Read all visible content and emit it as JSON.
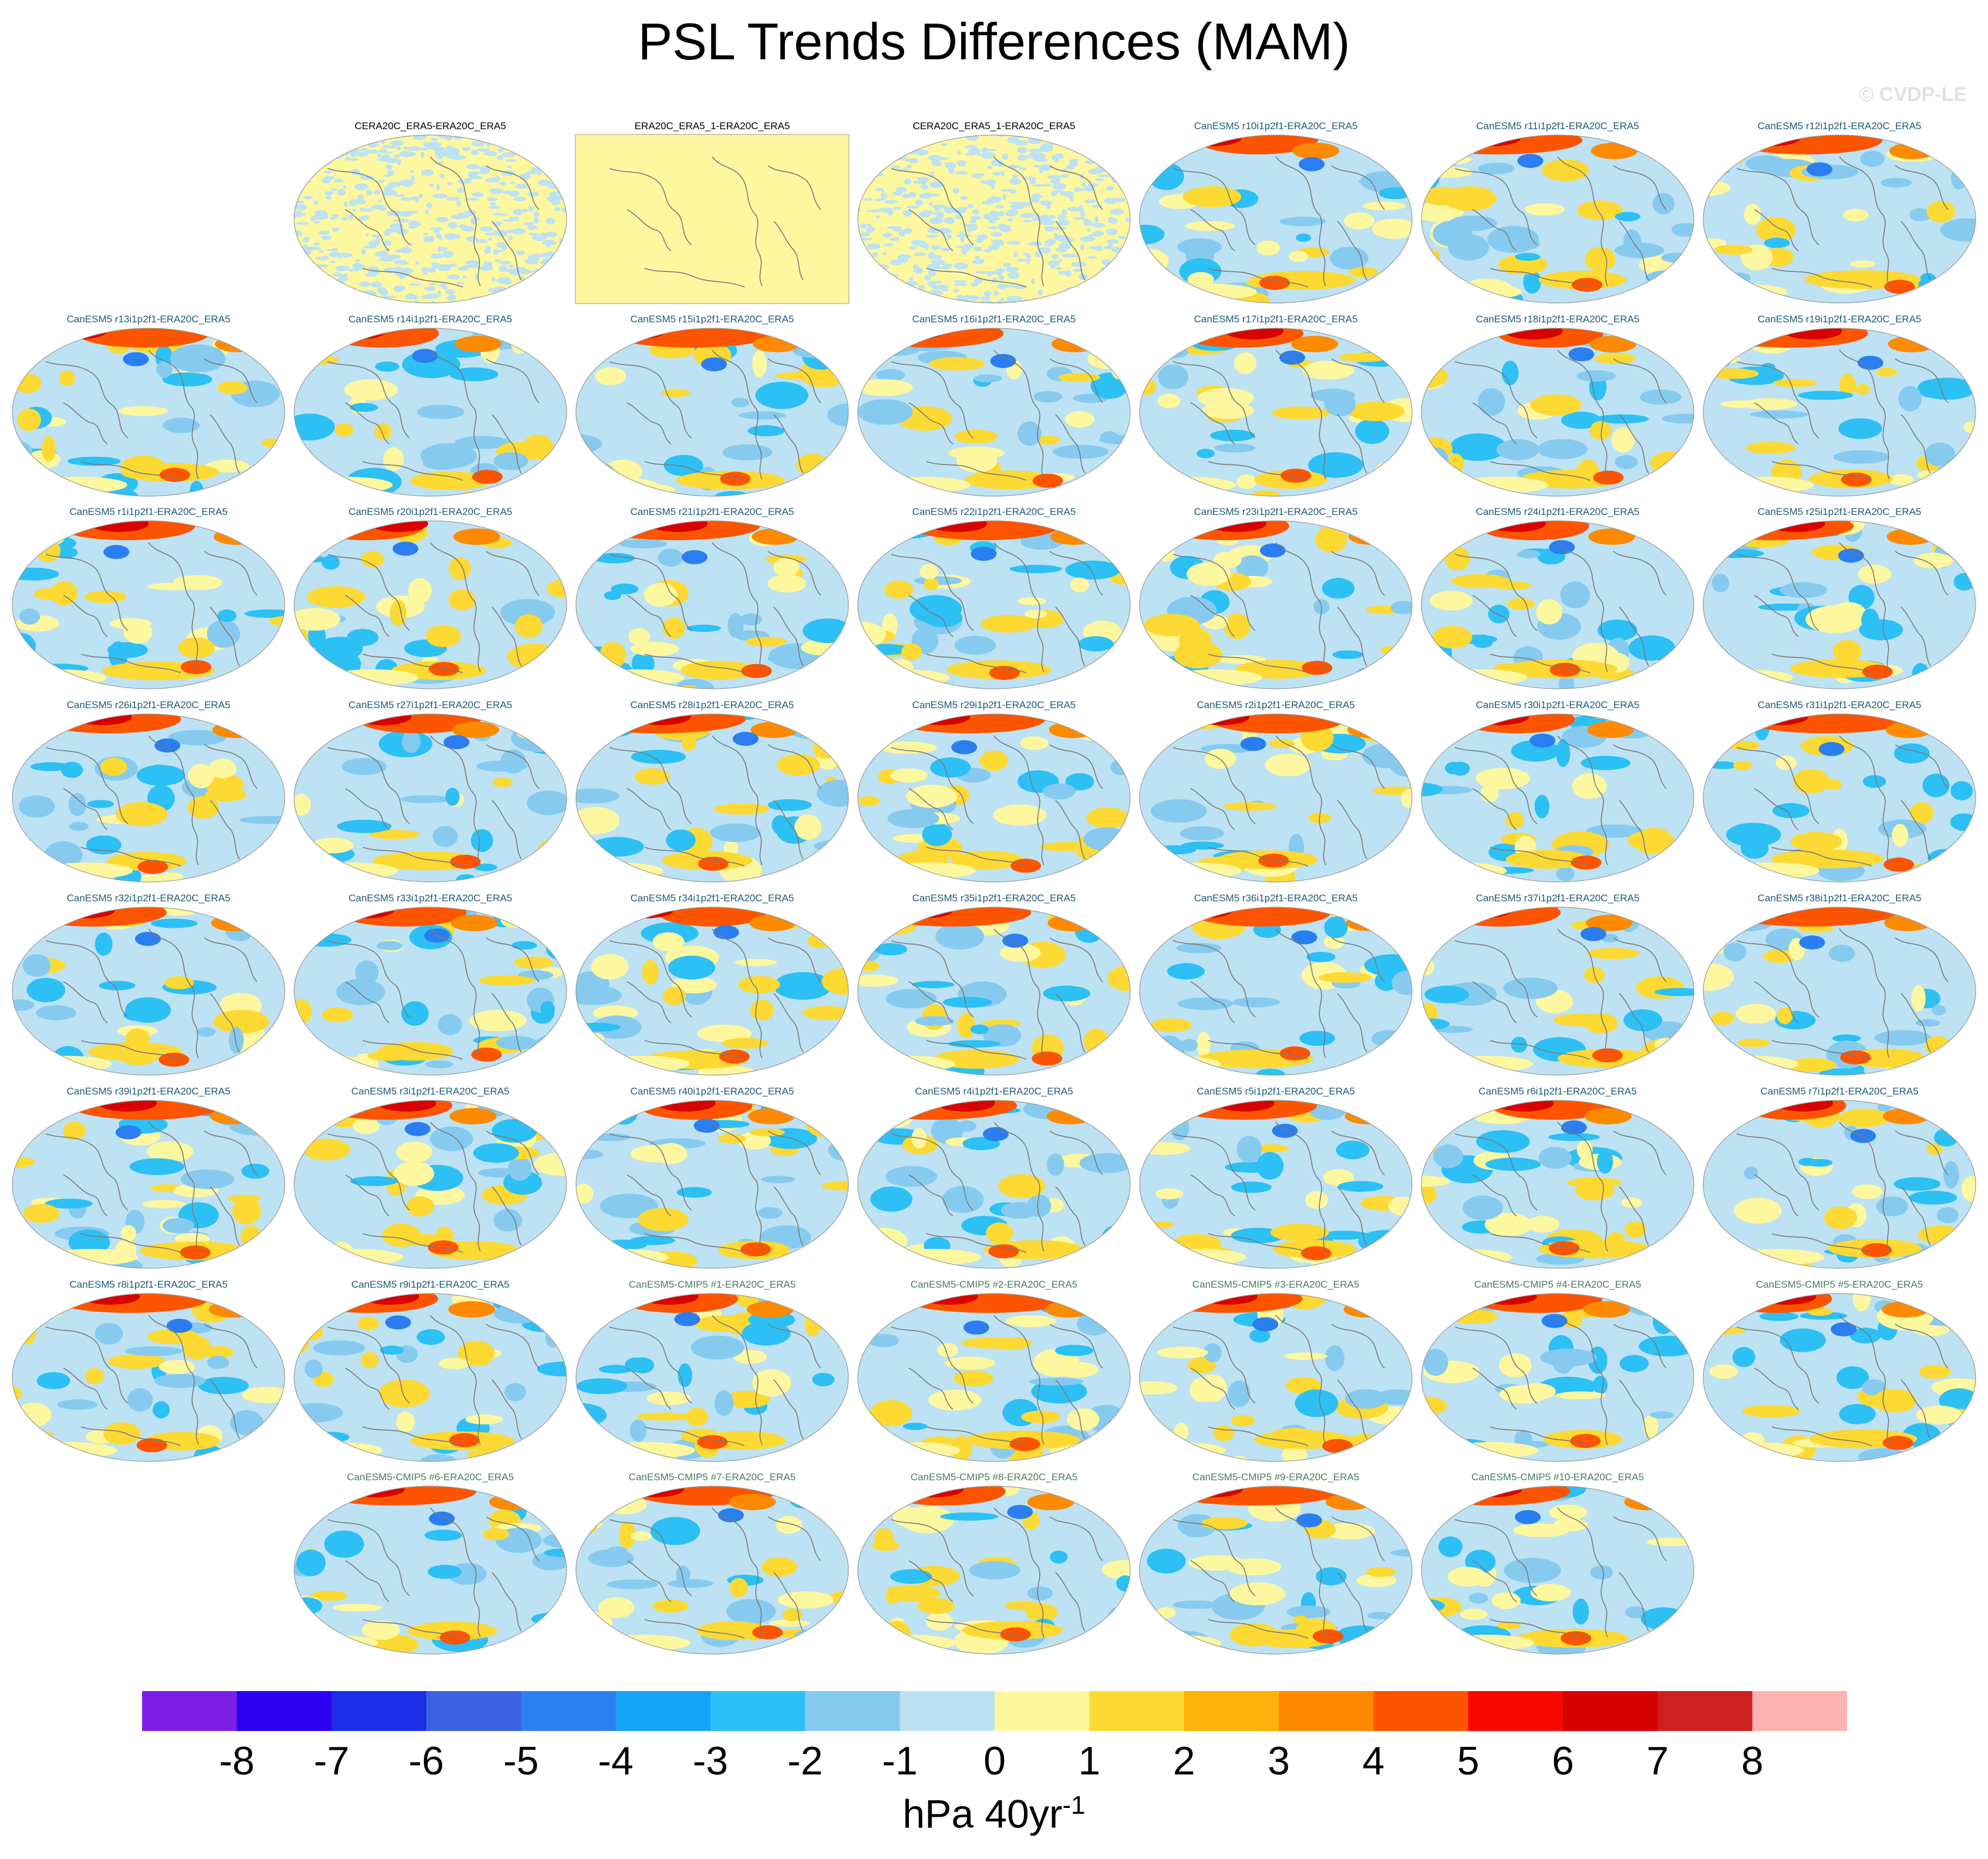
{
  "title": "PSL Trends Differences (MAM)",
  "copyright": "© CVDP-LE",
  "units": {
    "base": "hPa 40yr",
    "exp": "-1"
  },
  "colorbar": {
    "colors": [
      "#7d1ee6",
      "#2b00f0",
      "#1c2ee8",
      "#3a62de",
      "#2a7ef0",
      "#16a2f5",
      "#2cc0f5",
      "#86cbef",
      "#bde2f3",
      "#fdf7a0",
      "#fdd933",
      "#fdb20c",
      "#fd8a00",
      "#fd5400",
      "#f60a00",
      "#d80000",
      "#cd2121",
      "#fdb3b3"
    ],
    "labels": [
      "-8",
      "-7",
      "-6",
      "-5",
      "-4",
      "-3",
      "-2",
      "-1",
      "0",
      "1",
      "2",
      "3",
      "4",
      "5",
      "6",
      "7",
      "8"
    ]
  },
  "panels": [
    {
      "row": 0,
      "col": 1,
      "title": "CERA20C_ERA5-ERA20C_ERA5",
      "kind": "obs",
      "style": "speckle"
    },
    {
      "row": 0,
      "col": 2,
      "title": "ERA20C_ERA5_1-ERA20C_ERA5",
      "kind": "obs",
      "style": "flat"
    },
    {
      "row": 0,
      "col": 3,
      "title": "CERA20C_ERA5_1-ERA20C_ERA5",
      "kind": "obs",
      "style": "speckle"
    },
    {
      "row": 0,
      "col": 4,
      "title": "CanESM5 r10i1p2f1-ERA20C_ERA5",
      "kind": "le",
      "style": "field"
    },
    {
      "row": 0,
      "col": 5,
      "title": "CanESM5 r11i1p2f1-ERA20C_ERA5",
      "kind": "le",
      "style": "field"
    },
    {
      "row": 0,
      "col": 6,
      "title": "CanESM5 r12i1p2f1-ERA20C_ERA5",
      "kind": "le",
      "style": "field"
    },
    {
      "row": 1,
      "col": 0,
      "title": "CanESM5 r13i1p2f1-ERA20C_ERA5",
      "kind": "le",
      "style": "field"
    },
    {
      "row": 1,
      "col": 1,
      "title": "CanESM5 r14i1p2f1-ERA20C_ERA5",
      "kind": "le",
      "style": "field"
    },
    {
      "row": 1,
      "col": 2,
      "title": "CanESM5 r15i1p2f1-ERA20C_ERA5",
      "kind": "le",
      "style": "field"
    },
    {
      "row": 1,
      "col": 3,
      "title": "CanESM5 r16i1p2f1-ERA20C_ERA5",
      "kind": "le",
      "style": "field"
    },
    {
      "row": 1,
      "col": 4,
      "title": "CanESM5 r17i1p2f1-ERA20C_ERA5",
      "kind": "le",
      "style": "field"
    },
    {
      "row": 1,
      "col": 5,
      "title": "CanESM5 r18i1p2f1-ERA20C_ERA5",
      "kind": "le",
      "style": "field"
    },
    {
      "row": 1,
      "col": 6,
      "title": "CanESM5 r19i1p2f1-ERA20C_ERA5",
      "kind": "le",
      "style": "field"
    },
    {
      "row": 2,
      "col": 0,
      "title": "CanESM5 r1i1p2f1-ERA20C_ERA5",
      "kind": "le",
      "style": "field"
    },
    {
      "row": 2,
      "col": 1,
      "title": "CanESM5 r20i1p2f1-ERA20C_ERA5",
      "kind": "le",
      "style": "field"
    },
    {
      "row": 2,
      "col": 2,
      "title": "CanESM5 r21i1p2f1-ERA20C_ERA5",
      "kind": "le",
      "style": "field"
    },
    {
      "row": 2,
      "col": 3,
      "title": "CanESM5 r22i1p2f1-ERA20C_ERA5",
      "kind": "le",
      "style": "field"
    },
    {
      "row": 2,
      "col": 4,
      "title": "CanESM5 r23i1p2f1-ERA20C_ERA5",
      "kind": "le",
      "style": "field"
    },
    {
      "row": 2,
      "col": 5,
      "title": "CanESM5 r24i1p2f1-ERA20C_ERA5",
      "kind": "le",
      "style": "field"
    },
    {
      "row": 2,
      "col": 6,
      "title": "CanESM5 r25i1p2f1-ERA20C_ERA5",
      "kind": "le",
      "style": "field"
    },
    {
      "row": 3,
      "col": 0,
      "title": "CanESM5 r26i1p2f1-ERA20C_ERA5",
      "kind": "le",
      "style": "field"
    },
    {
      "row": 3,
      "col": 1,
      "title": "CanESM5 r27i1p2f1-ERA20C_ERA5",
      "kind": "le",
      "style": "field"
    },
    {
      "row": 3,
      "col": 2,
      "title": "CanESM5 r28i1p2f1-ERA20C_ERA5",
      "kind": "le",
      "style": "field"
    },
    {
      "row": 3,
      "col": 3,
      "title": "CanESM5 r29i1p2f1-ERA20C_ERA5",
      "kind": "le",
      "style": "field"
    },
    {
      "row": 3,
      "col": 4,
      "title": "CanESM5 r2i1p2f1-ERA20C_ERA5",
      "kind": "le",
      "style": "field"
    },
    {
      "row": 3,
      "col": 5,
      "title": "CanESM5 r30i1p2f1-ERA20C_ERA5",
      "kind": "le",
      "style": "field"
    },
    {
      "row": 3,
      "col": 6,
      "title": "CanESM5 r31i1p2f1-ERA20C_ERA5",
      "kind": "le",
      "style": "field"
    },
    {
      "row": 4,
      "col": 0,
      "title": "CanESM5 r32i1p2f1-ERA20C_ERA5",
      "kind": "le",
      "style": "field"
    },
    {
      "row": 4,
      "col": 1,
      "title": "CanESM5 r33i1p2f1-ERA20C_ERA5",
      "kind": "le",
      "style": "field"
    },
    {
      "row": 4,
      "col": 2,
      "title": "CanESM5 r34i1p2f1-ERA20C_ERA5",
      "kind": "le",
      "style": "field"
    },
    {
      "row": 4,
      "col": 3,
      "title": "CanESM5 r35i1p2f1-ERA20C_ERA5",
      "kind": "le",
      "style": "field"
    },
    {
      "row": 4,
      "col": 4,
      "title": "CanESM5 r36i1p2f1-ERA20C_ERA5",
      "kind": "le",
      "style": "field"
    },
    {
      "row": 4,
      "col": 5,
      "title": "CanESM5 r37i1p2f1-ERA20C_ERA5",
      "kind": "le",
      "style": "field"
    },
    {
      "row": 4,
      "col": 6,
      "title": "CanESM5 r38i1p2f1-ERA20C_ERA5",
      "kind": "le",
      "style": "field"
    },
    {
      "row": 5,
      "col": 0,
      "title": "CanESM5 r39i1p2f1-ERA20C_ERA5",
      "kind": "le",
      "style": "field"
    },
    {
      "row": 5,
      "col": 1,
      "title": "CanESM5 r3i1p2f1-ERA20C_ERA5",
      "kind": "le",
      "style": "field"
    },
    {
      "row": 5,
      "col": 2,
      "title": "CanESM5 r40i1p2f1-ERA20C_ERA5",
      "kind": "le",
      "style": "field"
    },
    {
      "row": 5,
      "col": 3,
      "title": "CanESM5 r4i1p2f1-ERA20C_ERA5",
      "kind": "le",
      "style": "field"
    },
    {
      "row": 5,
      "col": 4,
      "title": "CanESM5 r5i1p2f1-ERA20C_ERA5",
      "kind": "le",
      "style": "field"
    },
    {
      "row": 5,
      "col": 5,
      "title": "CanESM5 r6i1p2f1-ERA20C_ERA5",
      "kind": "le",
      "style": "field"
    },
    {
      "row": 5,
      "col": 6,
      "title": "CanESM5 r7i1p2f1-ERA20C_ERA5",
      "kind": "le",
      "style": "field"
    },
    {
      "row": 6,
      "col": 0,
      "title": "CanESM5 r8i1p2f1-ERA20C_ERA5",
      "kind": "le",
      "style": "field"
    },
    {
      "row": 6,
      "col": 1,
      "title": "CanESM5 r9i1p2f1-ERA20C_ERA5",
      "kind": "le",
      "style": "field"
    },
    {
      "row": 6,
      "col": 2,
      "title": "CanESM5-CMIP5 #1-ERA20C_ERA5",
      "kind": "cmip",
      "style": "field"
    },
    {
      "row": 6,
      "col": 3,
      "title": "CanESM5-CMIP5 #2-ERA20C_ERA5",
      "kind": "cmip",
      "style": "field"
    },
    {
      "row": 6,
      "col": 4,
      "title": "CanESM5-CMIP5 #3-ERA20C_ERA5",
      "kind": "cmip",
      "style": "field"
    },
    {
      "row": 6,
      "col": 5,
      "title": "CanESM5-CMIP5 #4-ERA20C_ERA5",
      "kind": "cmip",
      "style": "field"
    },
    {
      "row": 6,
      "col": 6,
      "title": "CanESM5-CMIP5 #5-ERA20C_ERA5",
      "kind": "cmip",
      "style": "field"
    },
    {
      "row": 7,
      "col": 1,
      "title": "CanESM5-CMIP5 #6-ERA20C_ERA5",
      "kind": "cmip",
      "style": "field"
    },
    {
      "row": 7,
      "col": 2,
      "title": "CanESM5-CMIP5 #7-ERA20C_ERA5",
      "kind": "cmip",
      "style": "field"
    },
    {
      "row": 7,
      "col": 3,
      "title": "CanESM5-CMIP5 #8-ERA20C_ERA5",
      "kind": "cmip",
      "style": "field"
    },
    {
      "row": 7,
      "col": 4,
      "title": "CanESM5-CMIP5 #9-ERA20C_ERA5",
      "kind": "cmip",
      "style": "field"
    },
    {
      "row": 7,
      "col": 5,
      "title": "CanESM5-CMIP5 #10-ERA20C_ERA5",
      "kind": "cmip",
      "style": "field"
    }
  ]
}
